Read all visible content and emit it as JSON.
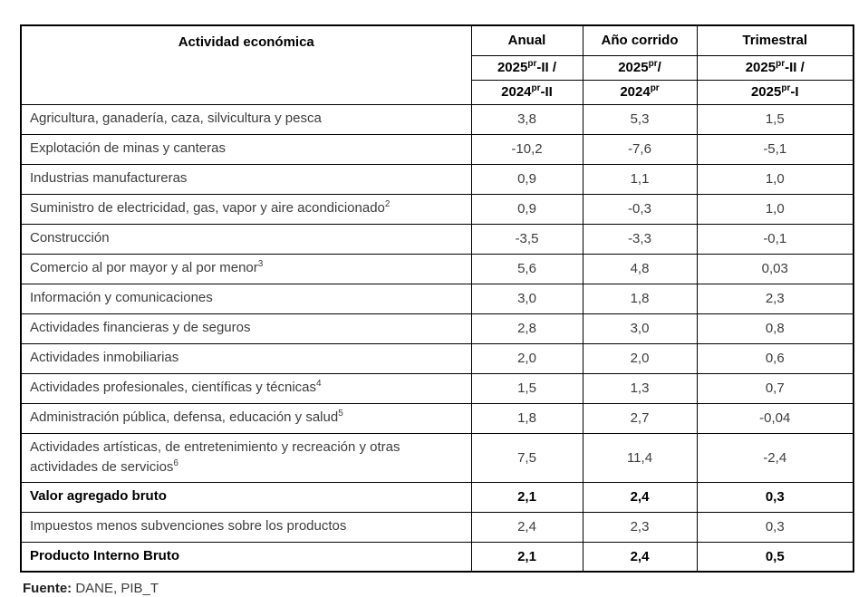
{
  "table": {
    "activity_header": "Actividad económica",
    "periods": [
      {
        "label": "Anual",
        "top": {
          "pre": "2025",
          "sup": "pr",
          "post": "-II /"
        },
        "bottom": {
          "pre": "2024",
          "sup": "pr",
          "post": "-II"
        }
      },
      {
        "label": "Año corrido",
        "top": {
          "pre": "2025",
          "sup": "pr",
          "post": "/"
        },
        "bottom": {
          "pre": "2024",
          "sup": "pr",
          "post": ""
        }
      },
      {
        "label": "Trimestral",
        "top": {
          "pre": "2025",
          "sup": "pr",
          "post": "-II /"
        },
        "bottom": {
          "pre": "2025",
          "sup": "pr",
          "post": "-I"
        }
      }
    ],
    "rows": [
      {
        "label": "Agricultura, ganadería, caza, silvicultura y pesca",
        "sup": "",
        "values": [
          "3,8",
          "5,3",
          "1,5"
        ],
        "bold": false,
        "tall": false
      },
      {
        "label": "Explotación de minas y canteras",
        "sup": "",
        "values": [
          "-10,2",
          "-7,6",
          "-5,1"
        ],
        "bold": false,
        "tall": false
      },
      {
        "label": "Industrias manufactureras",
        "sup": "",
        "values": [
          "0,9",
          "1,1",
          "1,0"
        ],
        "bold": false,
        "tall": false
      },
      {
        "label": "Suministro de electricidad, gas, vapor y aire acondicionado",
        "sup": "2",
        "values": [
          "0,9",
          "-0,3",
          "1,0"
        ],
        "bold": false,
        "tall": false
      },
      {
        "label": "Construcción",
        "sup": "",
        "values": [
          "-3,5",
          "-3,3",
          "-0,1"
        ],
        "bold": false,
        "tall": false
      },
      {
        "label": "Comercio al por mayor y al por menor",
        "sup": "3",
        "values": [
          "5,6",
          "4,8",
          "0,03"
        ],
        "bold": false,
        "tall": false
      },
      {
        "label": "Información y comunicaciones",
        "sup": "",
        "values": [
          "3,0",
          "1,8",
          "2,3"
        ],
        "bold": false,
        "tall": false
      },
      {
        "label": "Actividades financieras y de seguros",
        "sup": "",
        "values": [
          "2,8",
          "3,0",
          "0,8"
        ],
        "bold": false,
        "tall": false
      },
      {
        "label": "Actividades inmobiliarias",
        "sup": "",
        "values": [
          "2,0",
          "2,0",
          "0,6"
        ],
        "bold": false,
        "tall": false
      },
      {
        "label": "Actividades profesionales, científicas y técnicas",
        "sup": "4",
        "values": [
          "1,5",
          "1,3",
          "0,7"
        ],
        "bold": false,
        "tall": false
      },
      {
        "label": "Administración pública, defensa, educación y salud",
        "sup": "5",
        "values": [
          "1,8",
          "2,7",
          "-0,04"
        ],
        "bold": false,
        "tall": false
      },
      {
        "label": "Actividades artísticas, de entretenimiento y recreación y otras actividades de servicios",
        "sup": "6",
        "values": [
          "7,5",
          "11,4",
          "-2,4"
        ],
        "bold": false,
        "tall": true
      },
      {
        "label": "Valor agregado bruto",
        "sup": "",
        "values": [
          "2,1",
          "2,4",
          "0,3"
        ],
        "bold": true,
        "tall": false
      },
      {
        "label": "Impuestos menos subvenciones sobre los productos",
        "sup": "",
        "values": [
          "2,4",
          "2,3",
          "0,3"
        ],
        "bold": false,
        "tall": false
      },
      {
        "label": "Producto Interno Bruto",
        "sup": "",
        "values": [
          "2,1",
          "2,4",
          "0,5"
        ],
        "bold": true,
        "tall": false
      }
    ]
  },
  "footer": {
    "source_label": "Fuente:",
    "source_value": "DANE, PIB_T"
  },
  "colors": {
    "border": "#000000",
    "text_regular": "#3d3d3d",
    "text_bold": "#000000",
    "background": "#ffffff"
  }
}
